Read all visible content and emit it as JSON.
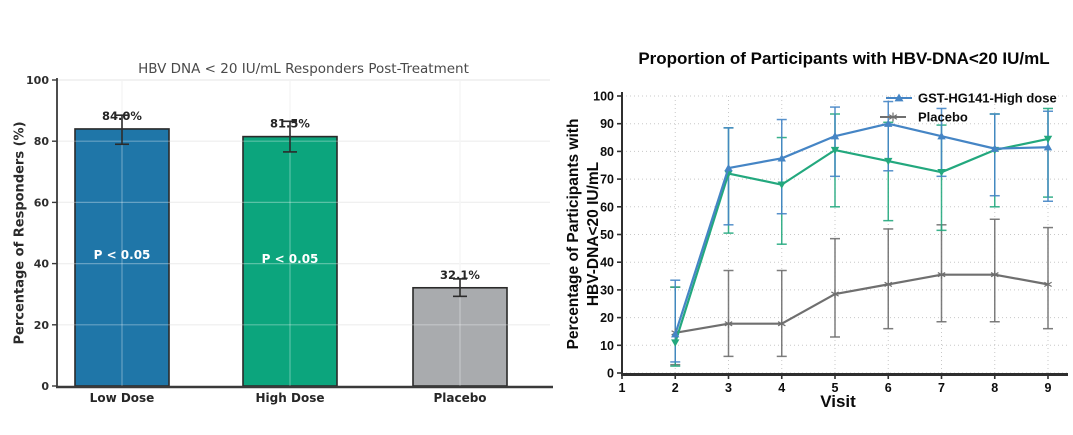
{
  "page": {
    "background": "#ffffff"
  },
  "chart_data": [
    {
      "type": "bar",
      "title": "HBV DNA < 20 IU/mL Responders Post-Treatment",
      "ylabel": "Percentage of Responders (%)",
      "categories": [
        "Low Dose",
        "High Dose",
        "Placebo"
      ],
      "values": [
        84.0,
        81.5,
        32.1
      ],
      "value_labels": [
        "84.0%",
        "81.5%",
        "32.1%"
      ],
      "error_low": [
        79.0,
        76.5,
        29.3
      ],
      "error_high": [
        88.5,
        86.5,
        35.0
      ],
      "annotations": [
        "P < 0.05",
        "P < 0.05",
        ""
      ],
      "bar_colors": [
        "#1f76a8",
        "#0ca57d",
        "#a9abae"
      ],
      "bar_edge_color": "#2a2a2a",
      "ylim": [
        0,
        100
      ],
      "yticks": [
        0,
        20,
        40,
        60,
        80,
        100
      ],
      "grid": true,
      "legend_position": "none"
    },
    {
      "type": "line",
      "title": "Proportion of Participants with HBV-DNA<20 IU/mL",
      "xlabel": "Visit",
      "ylabel_line1": "Percentage of Participants with",
      "ylabel_line2": "HBV-DNA<20 IU/mL",
      "xlim": [
        1,
        9
      ],
      "ylim": [
        0,
        100
      ],
      "xticks": [
        1,
        2,
        3,
        4,
        5,
        6,
        7,
        8,
        9
      ],
      "yticks": [
        0,
        10,
        20,
        30,
        40,
        50,
        60,
        70,
        80,
        90,
        100
      ],
      "grid": "dotted",
      "legend_position": "top-right",
      "legend": [
        {
          "label": "GST-HG141-High dose",
          "color": "#4585c5",
          "marker": "triangle-up"
        },
        {
          "label": "Placebo",
          "color": "#6f6f6f",
          "marker": "star"
        }
      ],
      "series": [
        {
          "id": "placebo",
          "color": "#6f6f6f",
          "marker": "star",
          "x": [
            2,
            3,
            4,
            5,
            6,
            7,
            8,
            9
          ],
          "y": [
            14.5,
            17.8,
            17.8,
            28.5,
            32,
            35.5,
            35.5,
            32
          ],
          "err_high": [
            31,
            37,
            37,
            48.5,
            52,
            53.5,
            55.5,
            52.5
          ],
          "err_low": [
            3,
            6,
            6,
            13,
            16,
            18.5,
            18.5,
            16
          ]
        },
        {
          "id": "series-green-unlabeled",
          "color": "#23a87e",
          "marker": "triangle-down",
          "x": [
            2,
            3,
            4,
            5,
            6,
            7,
            8,
            9
          ],
          "y": [
            11,
            72,
            68,
            80.5,
            76.5,
            72.5,
            80.5,
            84.5
          ],
          "err_high": [
            31,
            88.5,
            85,
            93.5,
            90.5,
            89.5,
            93.5,
            95.5
          ],
          "err_low": [
            2.5,
            50.5,
            46.5,
            60,
            55,
            51.5,
            60,
            63.5
          ]
        },
        {
          "id": "gst-hg141-high-dose",
          "color": "#4585c5",
          "marker": "triangle-up",
          "x": [
            2,
            3,
            4,
            5,
            6,
            7,
            8,
            9
          ],
          "y": [
            14,
            74,
            77.5,
            85.5,
            90,
            85.5,
            81,
            81.5
          ],
          "err_high": [
            33.5,
            88.5,
            91.5,
            96,
            98,
            95.5,
            93.5,
            94.5
          ],
          "err_low": [
            4,
            53.5,
            57.5,
            71,
            73,
            71,
            64,
            62
          ]
        }
      ]
    }
  ]
}
